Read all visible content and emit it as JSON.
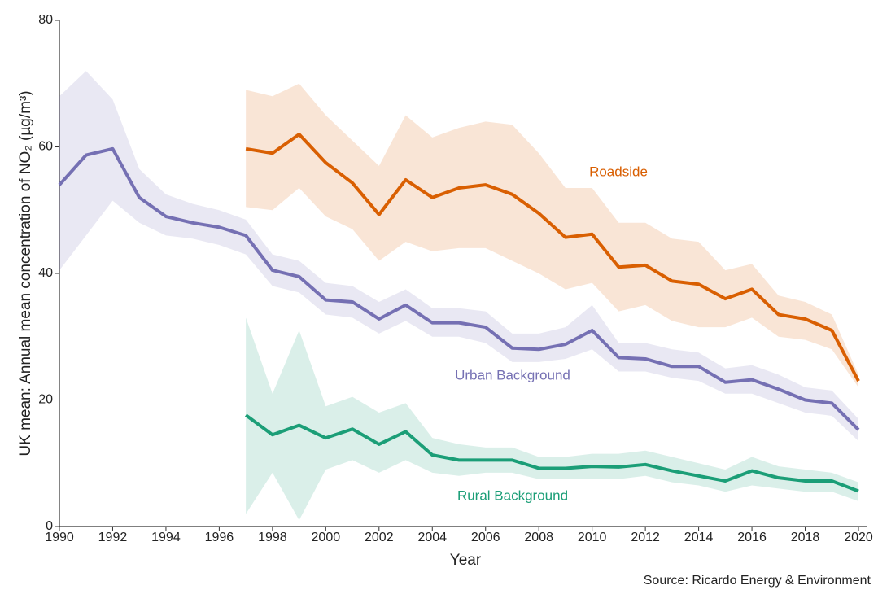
{
  "chart_data": {
    "type": "line",
    "ylabel": "UK mean: Annual mean concentration of NO₂ (µg/m³)",
    "xlabel": "Year",
    "source": "Source: Ricardo Energy & Environment",
    "x": [
      1990,
      1991,
      1992,
      1993,
      1994,
      1995,
      1996,
      1997,
      1998,
      1999,
      2000,
      2001,
      2002,
      2003,
      2004,
      2005,
      2006,
      2007,
      2008,
      2009,
      2010,
      2011,
      2012,
      2013,
      2014,
      2015,
      2016,
      2017,
      2018,
      2019,
      2020
    ],
    "xlim": [
      1990,
      2020
    ],
    "xticks": [
      1990,
      1992,
      1994,
      1996,
      1998,
      2000,
      2002,
      2004,
      2006,
      2008,
      2010,
      2012,
      2014,
      2016,
      2018,
      2020
    ],
    "ylim": [
      0,
      80
    ],
    "yticks": [
      0,
      20,
      40,
      60,
      80
    ],
    "grid": false,
    "series": [
      {
        "name": "Roadside",
        "color": "#d95f02",
        "values": [
          null,
          null,
          null,
          null,
          null,
          null,
          null,
          59.7,
          59,
          62,
          57.5,
          54.3,
          49.3,
          54.8,
          52,
          53.5,
          54,
          52.5,
          49.5,
          45.7,
          46.2,
          41,
          41.3,
          38.8,
          38.3,
          36,
          37.5,
          33.5,
          32.8,
          31,
          23
        ],
        "upper": [
          null,
          null,
          null,
          null,
          null,
          null,
          null,
          69,
          68,
          70,
          65,
          61,
          57,
          65,
          61.5,
          63,
          64,
          63.5,
          59,
          53.5,
          53.5,
          48,
          48,
          45.5,
          45,
          40.5,
          41.5,
          36.5,
          35.5,
          33.5,
          24
        ],
        "lower": [
          null,
          null,
          null,
          null,
          null,
          null,
          null,
          50.5,
          50,
          53.5,
          49,
          47,
          42,
          45,
          43.5,
          44,
          44,
          42,
          40,
          37.5,
          38.5,
          34,
          35,
          32.5,
          31.5,
          31.5,
          33,
          30,
          29.5,
          28,
          22
        ]
      },
      {
        "name": "Urban Background",
        "color": "#7570b3",
        "values": [
          54,
          58.7,
          59.7,
          52,
          49,
          48,
          47.3,
          46,
          40.5,
          39.5,
          35.8,
          35.5,
          32.8,
          35,
          32.2,
          32.2,
          31.5,
          28.2,
          28,
          28.8,
          31,
          26.7,
          26.5,
          25.3,
          25.3,
          22.8,
          23.2,
          21.7,
          20,
          19.5,
          15.3
        ],
        "upper": [
          68,
          72,
          67.5,
          56.5,
          52.5,
          51,
          50,
          48.5,
          43,
          42,
          38.5,
          38,
          35.5,
          37.5,
          34.5,
          34.5,
          34,
          30.5,
          30.5,
          31.5,
          35,
          29,
          29,
          28,
          27.5,
          25,
          25.5,
          24,
          22,
          21.5,
          17
        ],
        "lower": [
          40.5,
          46,
          51.5,
          48,
          46,
          45.5,
          44.5,
          43,
          38,
          37,
          33.5,
          33,
          30.5,
          32.5,
          30,
          30,
          29,
          26,
          26,
          26.5,
          28,
          24.5,
          24.5,
          23.5,
          23,
          21,
          21,
          19.5,
          18,
          17.5,
          13.5
        ]
      },
      {
        "name": "Rural Background",
        "color": "#1b9e77",
        "values": [
          null,
          null,
          null,
          null,
          null,
          null,
          null,
          17.6,
          14.5,
          16,
          14,
          15.4,
          13,
          15,
          11.3,
          10.5,
          10.5,
          10.5,
          9.2,
          9.2,
          9.5,
          9.4,
          9.8,
          8.8,
          8,
          7.2,
          8.8,
          7.7,
          7.2,
          7.2,
          5.6
        ],
        "upper": [
          null,
          null,
          null,
          null,
          null,
          null,
          null,
          33,
          21,
          31,
          19,
          20.5,
          18,
          19.5,
          14,
          13,
          12.5,
          12.5,
          11,
          11,
          11.5,
          11.5,
          12,
          11,
          10,
          9,
          11,
          9.5,
          9,
          8.5,
          7
        ],
        "lower": [
          null,
          null,
          null,
          null,
          null,
          null,
          null,
          2,
          8.5,
          1,
          9,
          10.5,
          8.5,
          10.5,
          8.5,
          8,
          8.5,
          8.5,
          7.5,
          7.5,
          7.5,
          7.5,
          8,
          7,
          6.5,
          5.5,
          6.5,
          6,
          5.5,
          5.5,
          4
        ]
      }
    ]
  }
}
